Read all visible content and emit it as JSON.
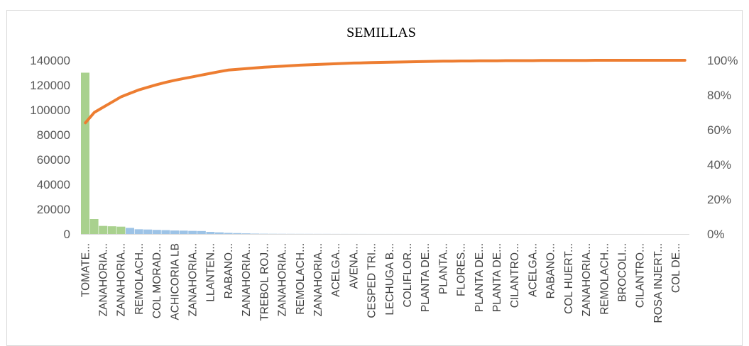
{
  "chart_data": {
    "type": "bar",
    "title": "SEMILLAS",
    "xlabel": "",
    "ylabel": "",
    "ylim": [
      0,
      140000
    ],
    "y2lim": [
      0,
      1
    ],
    "y_ticks": [
      "0",
      "20000",
      "40000",
      "60000",
      "80000",
      "100000",
      "120000",
      "140000"
    ],
    "y2_ticks": [
      "0%",
      "20%",
      "40%",
      "60%",
      "80%",
      "100%"
    ],
    "grid": false,
    "legend": "none",
    "categories": [
      "TOMATE...",
      "",
      "ZANAHORIA...",
      "",
      "ZANAHORIA...",
      "",
      "REMOLACH...",
      "",
      "COL MORAD...",
      "",
      "ACHICORIA LB",
      "",
      "ZANAHORIA...",
      "",
      "LLANTEN...",
      "",
      "RABANO...",
      "",
      "ZANAHORIA...",
      "",
      "TREBOL ROJ...",
      "",
      "ZANAHORIA...",
      "",
      "REMOLACH...",
      "",
      "ZANAHORIA...",
      "",
      "ACELGA...",
      "",
      "AVENA...",
      "",
      "CESPED TRI...",
      "",
      "LECHUGA B...",
      "",
      "COLIFLOR...",
      "",
      "PLANTA DE...",
      "",
      "PLANTA...",
      "",
      "FLORES...",
      "",
      "PLANTA DE...",
      "",
      "PLANTA DE...",
      "",
      "CILANTRO...",
      "",
      "ACELGA...",
      "",
      "RABANO...",
      "",
      "COL HUERT...",
      "",
      "ZANAHORIA...",
      "",
      "REMOLACH...",
      "",
      "BROCOLI...",
      "",
      "CILANTRO...",
      "",
      "ROSA INJERT...",
      "",
      "COL DE...",
      ""
    ],
    "series": [
      {
        "type": "bar",
        "values": [
          130000,
          12000,
          6500,
          6200,
          5900,
          4900,
          3800,
          3600,
          3300,
          3100,
          2800,
          2700,
          2500,
          2400,
          1700,
          1300,
          900,
          700,
          500,
          300,
          200,
          150,
          120,
          100,
          90,
          80,
          70,
          60,
          55,
          50,
          45,
          40,
          35,
          30,
          28,
          26,
          24,
          22,
          20,
          18,
          16,
          15,
          14,
          13,
          12,
          11,
          10,
          9,
          9,
          8,
          8,
          7,
          7,
          6,
          6,
          5,
          5,
          4,
          4,
          4,
          3,
          3,
          3,
          2,
          2,
          2,
          1,
          1
        ]
      },
      {
        "type": "line",
        "axis": "secondary",
        "values": [
          0.64,
          0.7,
          0.73,
          0.76,
          0.79,
          0.81,
          0.83,
          0.845,
          0.86,
          0.873,
          0.885,
          0.895,
          0.905,
          0.915,
          0.925,
          0.935,
          0.944,
          0.948,
          0.952,
          0.956,
          0.96,
          0.963,
          0.966,
          0.969,
          0.972,
          0.974,
          0.976,
          0.978,
          0.98,
          0.982,
          0.984,
          0.985,
          0.987,
          0.988,
          0.989,
          0.99,
          0.991,
          0.992,
          0.993,
          0.994,
          0.995,
          0.995,
          0.996,
          0.996,
          0.997,
          0.997,
          0.997,
          0.998,
          0.998,
          0.998,
          0.998,
          0.999,
          0.999,
          0.999,
          0.999,
          0.999,
          0.999,
          1.0,
          1.0,
          1.0,
          1.0,
          1.0,
          1.0,
          1.0,
          1.0,
          1.0,
          1.0,
          1.0
        ]
      }
    ],
    "colors": {
      "bar_green": "#a9d18e",
      "bar_blue": "#9dc3e6",
      "line": "#ed7d31",
      "axis": "#d9d9d9",
      "tick_text": "#595959",
      "cat_text": "#404040",
      "frame": "#d9d9d9"
    }
  }
}
